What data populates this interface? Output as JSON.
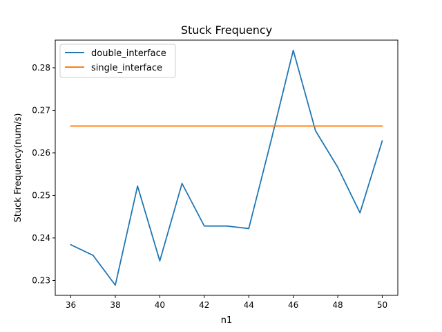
{
  "chart_data": {
    "type": "line",
    "title": "Stuck Frequency",
    "xlabel": "n1",
    "ylabel": "Stuck Frequency(num/s)",
    "x": [
      36,
      37,
      38,
      39,
      40,
      41,
      42,
      43,
      44,
      45,
      46,
      47,
      48,
      49,
      50
    ],
    "xlim": [
      35.3,
      50.7
    ],
    "ylim": [
      0.2265,
      0.2865
    ],
    "xticks": [
      36,
      38,
      40,
      42,
      44,
      46,
      48,
      50
    ],
    "yticks": [
      0.23,
      0.24,
      0.25,
      0.26,
      0.27,
      0.28
    ],
    "xtick_labels": [
      "36",
      "38",
      "40",
      "42",
      "44",
      "46",
      "48",
      "50"
    ],
    "ytick_labels": [
      "0.23",
      "0.24",
      "0.25",
      "0.26",
      "0.27",
      "0.28"
    ],
    "grid": false,
    "legend_position": "top-left",
    "series": [
      {
        "name": "double_interface",
        "color": "#1f77b4",
        "values": [
          0.2384,
          0.2359,
          0.2289,
          0.2522,
          0.2346,
          0.2528,
          0.2428,
          0.2428,
          0.2422,
          0.2628,
          0.2841,
          0.2652,
          0.2566,
          0.2459,
          0.2628
        ]
      },
      {
        "name": "single_interface",
        "color": "#ff7f0e",
        "values": [
          0.2663,
          0.2663,
          0.2663,
          0.2663,
          0.2663,
          0.2663,
          0.2663,
          0.2663,
          0.2663,
          0.2663,
          0.2663,
          0.2663,
          0.2663,
          0.2663,
          0.2663
        ]
      }
    ]
  }
}
